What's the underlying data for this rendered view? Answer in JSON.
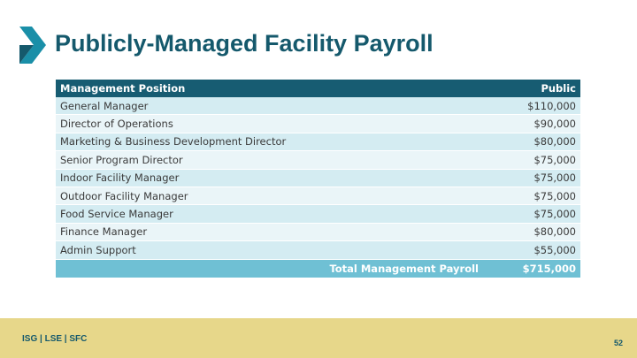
{
  "slide": {
    "title": "Publicly-Managed Facility Payroll",
    "page_number": "52",
    "footer_brand": "ISG  |  LSE  |  SFC"
  },
  "colors": {
    "title": "#15596c",
    "header_bg": "#175c72",
    "row_odd": "#d4ecf2",
    "row_even": "#eaf5f8",
    "total_bg": "#6fc0d4",
    "footer_bg": "#e7d78a"
  },
  "table": {
    "headers": [
      "Management Position",
      "Public"
    ],
    "rows": [
      [
        "General Manager",
        "$110,000"
      ],
      [
        "Director of Operations",
        "$90,000"
      ],
      [
        "Marketing & Business Development Director",
        "$80,000"
      ],
      [
        "Senior Program Director",
        "$75,000"
      ],
      [
        "Indoor Facility Manager",
        "$75,000"
      ],
      [
        "Outdoor Facility Manager",
        "$75,000"
      ],
      [
        "Food Service Manager",
        "$75,000"
      ],
      [
        "Finance Manager",
        "$80,000"
      ],
      [
        "Admin Support",
        "$55,000"
      ]
    ],
    "total_label": "Total Management Payroll",
    "total_value": "$715,000"
  }
}
